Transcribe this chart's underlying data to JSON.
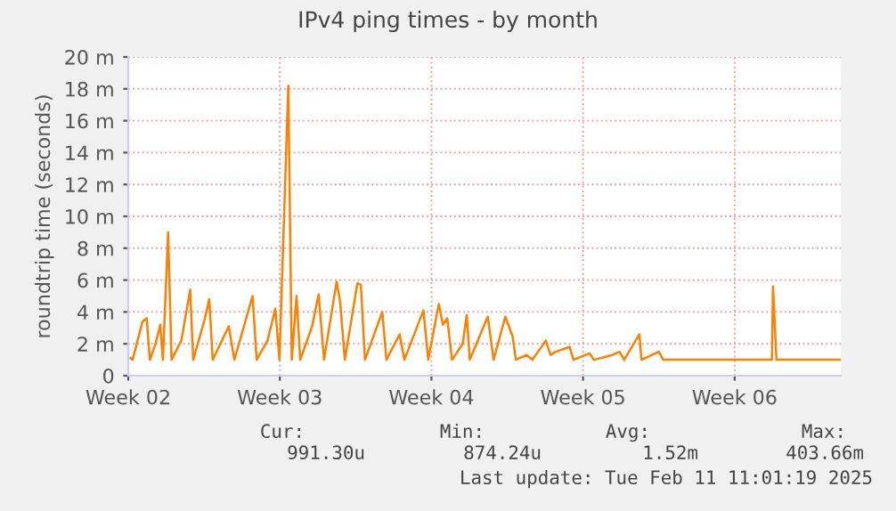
{
  "chart_data": {
    "type": "line",
    "title": "IPv4 ping times - by month",
    "ylabel": "roundtrip time (seconds)",
    "series": [
      {
        "color": "#ff7f00",
        "x": [
          "2025-01-06T02:24",
          "2025-01-06T04:48",
          "2025-01-06T15:50",
          "2025-01-06T20:24",
          "2025-01-07T00:00",
          "2025-01-07T06:14",
          "2025-01-07T11:31",
          "2025-01-07T14:24",
          "2025-01-07T20:10",
          "2025-01-08T00:00",
          "2025-01-08T10:48",
          "2025-01-08T20:38",
          "2025-01-09T00:00",
          "2025-01-09T12:58",
          "2025-01-09T17:46",
          "2025-01-09T21:36",
          "2025-01-10T15:22",
          "2025-01-10T21:36",
          "2025-01-11T17:46",
          "2025-01-11T22:19",
          "2025-01-12T10:19",
          "2025-01-12T18:58",
          "2025-01-12T23:31",
          "2025-01-13T09:22",
          "2025-01-13T13:12",
          "2025-01-13T18:29",
          "2025-01-13T22:34",
          "2025-01-14T11:46",
          "2025-01-14T18:58",
          "2025-01-15T00:58",
          "2025-01-15T14:53",
          "2025-01-15T18:43",
          "2025-01-16T00:00",
          "2025-01-16T13:55",
          "2025-01-16T17:46",
          "2025-01-16T22:19",
          "2025-01-17T17:31",
          "2025-01-17T22:05",
          "2025-01-18T12:43",
          "2025-01-18T18:00",
          "2025-01-19T15:07",
          "2025-01-19T20:24",
          "2025-01-20T08:10",
          "2025-01-20T12:43",
          "2025-01-20T17:31",
          "2025-01-20T22:48",
          "2025-01-21T10:34",
          "2025-01-21T15:07",
          "2025-01-21T18:29",
          "2025-01-22T14:24",
          "2025-01-22T20:53",
          "2025-01-23T09:50",
          "2025-01-23T17:46",
          "2025-01-23T21:36",
          "2025-01-24T09:36",
          "2025-01-24T15:50",
          "2025-01-25T06:43",
          "2025-01-25T12:00",
          "2025-01-25T17:46",
          "2025-01-26T09:07",
          "2025-01-26T13:26",
          "2025-01-27T07:12",
          "2025-01-27T12:00",
          "2025-01-28T08:38",
          "2025-01-28T16:19",
          "2025-01-28T21:36",
          "2025-01-29T14:24",
          "2025-01-29T16:48",
          "2025-01-30T12:00",
          "2025-01-30T16:48",
          "2025-01-31T09:36",
          "2025-02-04T17:17",
          "2025-02-04T18:29",
          "2025-02-04T22:19",
          "2025-02-07T21:36"
        ],
        "values": [
          1.1,
          1.0,
          3.4,
          3.6,
          1.0,
          2.0,
          3.2,
          1.0,
          9.0,
          1.0,
          2.2,
          5.4,
          1.0,
          3.6,
          4.8,
          1.0,
          3.1,
          1.0,
          5.0,
          1.0,
          2.2,
          4.2,
          1.0,
          18.2,
          1.0,
          5.0,
          1.0,
          3.1,
          5.1,
          1.0,
          5.9,
          4.7,
          1.0,
          5.8,
          5.7,
          1.0,
          4.0,
          1.0,
          2.6,
          1.0,
          4.1,
          1.0,
          4.5,
          3.2,
          3.6,
          1.0,
          2.0,
          3.8,
          1.0,
          3.7,
          1.0,
          3.7,
          2.5,
          1.0,
          1.3,
          1.0,
          2.2,
          1.3,
          1.5,
          1.8,
          1.0,
          1.4,
          1.0,
          1.3,
          1.5,
          1.0,
          2.6,
          1.0,
          1.5,
          1.0,
          1.0,
          1.0,
          5.6,
          1.0,
          1.0
        ]
      }
    ],
    "xlim": [
      "2025-01-06",
      "2025-02-07T21:36"
    ],
    "xticks": [
      {
        "value": "2025-01-06",
        "label": "Week 02"
      },
      {
        "value": "2025-01-13",
        "label": "Week 03"
      },
      {
        "value": "2025-01-20",
        "label": "Week 04"
      },
      {
        "value": "2025-01-27",
        "label": "Week 05"
      },
      {
        "value": "2025-02-03",
        "label": "Week 06"
      }
    ],
    "ylim": [
      0,
      20
    ],
    "yticks": [
      0,
      {
        "value": 2,
        "label": "2 m"
      },
      {
        "value": 4,
        "label": "4 m"
      },
      {
        "value": 6,
        "label": "6 m"
      },
      {
        "value": 8,
        "label": "8 m"
      },
      {
        "value": 10,
        "label": "10 m"
      },
      {
        "value": 12,
        "label": "12 m"
      },
      {
        "value": 14,
        "label": "14 m"
      },
      {
        "value": 16,
        "label": "16 m"
      },
      {
        "value": 18,
        "label": "18 m"
      },
      {
        "value": 20,
        "label": "20 m"
      }
    ],
    "grid": true,
    "annotations": [
      "Cur:",
      "991.30u",
      "Min:",
      "874.24u",
      "Avg:",
      "1.52m",
      "Max:",
      "403.66m",
      "Last update: Tue Feb 11 11:01:19 2025"
    ]
  }
}
